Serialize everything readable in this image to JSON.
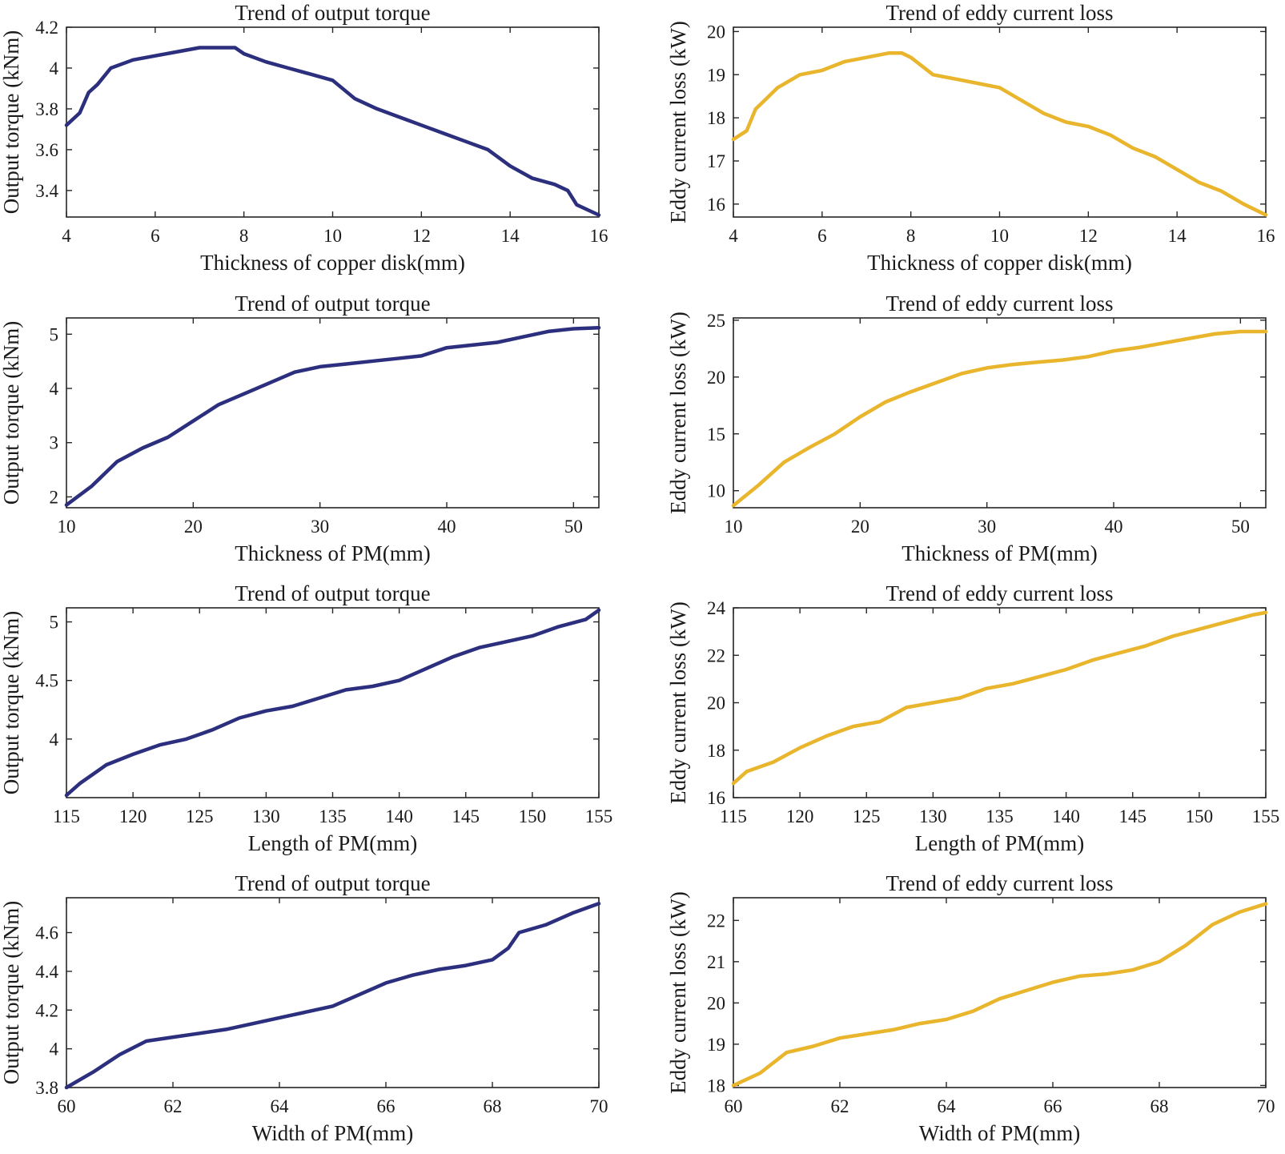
{
  "colors": {
    "torque": "#2b2f7d",
    "loss": "#e8b52c"
  },
  "chart_data": [
    {
      "type": "line",
      "title": "Trend of output torque",
      "xlabel": "Thickness of copper disk(mm)",
      "ylabel": "Output torque (kNm)",
      "xlim": [
        4,
        16
      ],
      "ylim": [
        3.27,
        4.2
      ],
      "xticks": [
        4,
        6,
        8,
        10,
        12,
        14,
        16
      ],
      "yticks": [
        3.4,
        3.6,
        3.8,
        4,
        4.2
      ],
      "color": "torque",
      "x": [
        4,
        4.3,
        4.5,
        4.7,
        5,
        5.5,
        6,
        6.5,
        7,
        7.5,
        7.8,
        8,
        8.5,
        9,
        9.5,
        10,
        10.5,
        11,
        11.5,
        12,
        12.5,
        13,
        13.5,
        14,
        14.5,
        15,
        15.3,
        15.5,
        16
      ],
      "y": [
        3.72,
        3.78,
        3.88,
        3.92,
        4.0,
        4.04,
        4.06,
        4.08,
        4.1,
        4.1,
        4.1,
        4.07,
        4.03,
        4.0,
        3.97,
        3.94,
        3.85,
        3.8,
        3.76,
        3.72,
        3.68,
        3.64,
        3.6,
        3.52,
        3.46,
        3.43,
        3.4,
        3.33,
        3.28
      ]
    },
    {
      "type": "line",
      "title": "Trend of eddy current loss",
      "xlabel": "Thickness of copper disk(mm)",
      "ylabel": "Eddy current loss (kW)",
      "xlim": [
        4,
        16
      ],
      "ylim": [
        15.7,
        20.1
      ],
      "xticks": [
        4,
        6,
        8,
        10,
        12,
        14,
        16
      ],
      "yticks": [
        16,
        17,
        18,
        19,
        20
      ],
      "color": "loss",
      "x": [
        4,
        4.3,
        4.5,
        5,
        5.5,
        6,
        6.5,
        7,
        7.5,
        7.8,
        8,
        8.5,
        9,
        9.5,
        10,
        10.5,
        11,
        11.5,
        12,
        12.5,
        13,
        13.5,
        14,
        14.5,
        15,
        15.5,
        16
      ],
      "y": [
        17.5,
        17.7,
        18.2,
        18.7,
        19.0,
        19.1,
        19.3,
        19.4,
        19.5,
        19.5,
        19.4,
        19.0,
        18.9,
        18.8,
        18.7,
        18.4,
        18.1,
        17.9,
        17.8,
        17.6,
        17.3,
        17.1,
        16.8,
        16.5,
        16.3,
        16.0,
        15.75
      ]
    },
    {
      "type": "line",
      "title": "Trend of output torque",
      "xlabel": "Thickness of PM(mm)",
      "ylabel": "Output torque (kNm)",
      "xlim": [
        10,
        52
      ],
      "ylim": [
        1.8,
        5.3
      ],
      "xticks": [
        10,
        20,
        30,
        40,
        50
      ],
      "yticks": [
        2,
        3,
        4,
        5
      ],
      "color": "torque",
      "x": [
        10,
        12,
        14,
        16,
        18,
        20,
        22,
        24,
        26,
        28,
        30,
        32,
        34,
        36,
        38,
        40,
        42,
        44,
        46,
        48,
        50,
        52
      ],
      "y": [
        1.85,
        2.2,
        2.65,
        2.9,
        3.1,
        3.4,
        3.7,
        3.9,
        4.1,
        4.3,
        4.4,
        4.45,
        4.5,
        4.55,
        4.6,
        4.75,
        4.8,
        4.85,
        4.95,
        5.05,
        5.1,
        5.12
      ]
    },
    {
      "type": "line",
      "title": "Trend of eddy current loss",
      "xlabel": "Thickness of PM(mm)",
      "ylabel": "Eddy current loss (kW)",
      "xlim": [
        10,
        52
      ],
      "ylim": [
        8.5,
        25.2
      ],
      "xticks": [
        10,
        20,
        30,
        40,
        50
      ],
      "yticks": [
        10,
        15,
        20,
        25
      ],
      "color": "loss",
      "x": [
        10,
        12,
        14,
        16,
        18,
        20,
        22,
        24,
        26,
        28,
        30,
        32,
        34,
        36,
        38,
        40,
        42,
        44,
        46,
        48,
        50,
        52
      ],
      "y": [
        8.7,
        10.5,
        12.5,
        13.8,
        15.0,
        16.5,
        17.8,
        18.7,
        19.5,
        20.3,
        20.8,
        21.1,
        21.3,
        21.5,
        21.8,
        22.3,
        22.6,
        23.0,
        23.4,
        23.8,
        24.0,
        24.0
      ]
    },
    {
      "type": "line",
      "title": "Trend of output torque",
      "xlabel": "Length of PM(mm)",
      "ylabel": "Output torque (kNm)",
      "xlim": [
        115,
        155
      ],
      "ylim": [
        3.5,
        5.12
      ],
      "xticks": [
        115,
        120,
        125,
        130,
        135,
        140,
        145,
        150,
        155
      ],
      "yticks": [
        4,
        4.5,
        5
      ],
      "color": "torque",
      "x": [
        115,
        116,
        118,
        120,
        122,
        124,
        126,
        128,
        130,
        132,
        134,
        136,
        138,
        140,
        142,
        144,
        146,
        148,
        150,
        152,
        154,
        155
      ],
      "y": [
        3.52,
        3.62,
        3.78,
        3.87,
        3.95,
        4.0,
        4.08,
        4.18,
        4.24,
        4.28,
        4.35,
        4.42,
        4.45,
        4.5,
        4.6,
        4.7,
        4.78,
        4.83,
        4.88,
        4.96,
        5.02,
        5.1
      ]
    },
    {
      "type": "line",
      "title": "Trend of eddy current loss",
      "xlabel": "Length of PM(mm)",
      "ylabel": "Eddy current loss (kW)",
      "xlim": [
        115,
        155
      ],
      "ylim": [
        16,
        24
      ],
      "xticks": [
        115,
        120,
        125,
        130,
        135,
        140,
        145,
        150,
        155
      ],
      "yticks": [
        16,
        18,
        20,
        22,
        24
      ],
      "color": "loss",
      "x": [
        115,
        116,
        118,
        120,
        122,
        124,
        126,
        128,
        130,
        132,
        134,
        136,
        138,
        140,
        142,
        144,
        146,
        148,
        150,
        152,
        154,
        155
      ],
      "y": [
        16.6,
        17.1,
        17.5,
        18.1,
        18.6,
        19.0,
        19.2,
        19.8,
        20.0,
        20.2,
        20.6,
        20.8,
        21.1,
        21.4,
        21.8,
        22.1,
        22.4,
        22.8,
        23.1,
        23.4,
        23.7,
        23.8
      ]
    },
    {
      "type": "line",
      "title": "Trend of output torque",
      "xlabel": "Width of PM(mm)",
      "ylabel": "Output torque (kNm)",
      "xlim": [
        60,
        70
      ],
      "ylim": [
        3.8,
        4.78
      ],
      "xticks": [
        60,
        62,
        64,
        66,
        68,
        70
      ],
      "yticks": [
        3.8,
        4,
        4.2,
        4.4,
        4.6
      ],
      "color": "torque",
      "x": [
        60,
        60.5,
        61,
        61.5,
        62,
        62.5,
        63,
        63.5,
        64,
        64.5,
        65,
        65.5,
        66,
        66.5,
        67,
        67.5,
        68,
        68.3,
        68.5,
        69,
        69.5,
        70
      ],
      "y": [
        3.8,
        3.88,
        3.97,
        4.04,
        4.06,
        4.08,
        4.1,
        4.13,
        4.16,
        4.19,
        4.22,
        4.28,
        4.34,
        4.38,
        4.41,
        4.43,
        4.46,
        4.52,
        4.6,
        4.64,
        4.7,
        4.75
      ]
    },
    {
      "type": "line",
      "title": "Trend of eddy current loss",
      "xlabel": "Width of PM(mm)",
      "ylabel": "Eddy current loss (kW)",
      "xlim": [
        60,
        70
      ],
      "ylim": [
        17.95,
        22.55
      ],
      "xticks": [
        60,
        62,
        64,
        66,
        68,
        70
      ],
      "yticks": [
        18,
        19,
        20,
        21,
        22
      ],
      "color": "loss",
      "x": [
        60,
        60.5,
        61,
        61.5,
        62,
        62.5,
        63,
        63.5,
        64,
        64.5,
        65,
        65.5,
        66,
        66.5,
        67,
        67.5,
        68,
        68.5,
        69,
        69.5,
        70
      ],
      "y": [
        18.0,
        18.3,
        18.8,
        18.95,
        19.15,
        19.25,
        19.35,
        19.5,
        19.6,
        19.8,
        20.1,
        20.3,
        20.5,
        20.65,
        20.7,
        20.8,
        21.0,
        21.4,
        21.9,
        22.2,
        22.4
      ]
    }
  ]
}
